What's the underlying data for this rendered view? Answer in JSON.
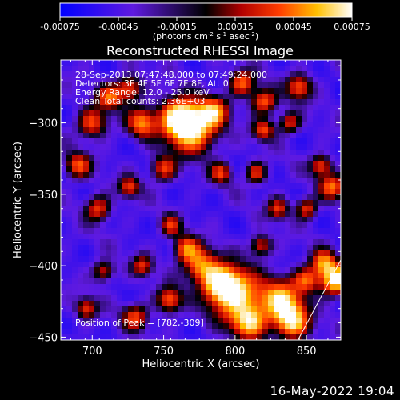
{
  "window": {
    "timestamp": "16-May-2022 19:04"
  },
  "colorbar": {
    "ticks": [
      "-0.00075",
      "-0.00045",
      "-0.00015",
      "0.00015",
      "0.00045",
      "0.00075"
    ],
    "tick_values": [
      -0.00075,
      -0.00045,
      -0.00015,
      0.00015,
      0.00045,
      0.00075
    ],
    "units_main": "(photons cm",
    "units_sup1": "-2",
    "units_mid1": " s",
    "units_sup2": "-1",
    "units_mid2": " asec",
    "units_sup3": "-2",
    "units_end": ")"
  },
  "chart_data": {
    "type": "heatmap",
    "title": "Reconstructed RHESSI Image",
    "xlabel": "Heliocentric X (arcsec)",
    "ylabel": "Heliocentric Y (arcsec)",
    "xlim": [
      678,
      874
    ],
    "ylim": [
      -452,
      -256
    ],
    "xticks": [
      700,
      750,
      800,
      850
    ],
    "yticks": [
      -300,
      -350,
      -400,
      -450
    ],
    "annotations": [
      "28-Sep-2013 07:47:48.000 to 07:49:24.000",
      "Detectors: 3F 4F 5F 6F 7F 8F, Att 0",
      "Energy Range: 12.0 - 25.0 keV",
      "Clean    Total counts: 2.36E+03"
    ],
    "peak_label": "Position of Peak = [782,-309]",
    "peak": [
      782,
      -309
    ],
    "limb_line": [
      [
        844,
        -452
      ],
      [
        874,
        -396
      ]
    ],
    "blobs": [
      [
        770,
        -304,
        11,
        1.0
      ],
      [
        760,
        -296,
        9,
        0.75
      ],
      [
        785,
        -292,
        7,
        0.55
      ],
      [
        735,
        -300,
        7,
        0.55
      ],
      [
        726,
        -276,
        6,
        0.45
      ],
      [
        712,
        -282,
        6,
        0.45
      ],
      [
        700,
        -300,
        7,
        0.45
      ],
      [
        690,
        -330,
        6,
        0.45
      ],
      [
        750,
        -332,
        6,
        0.4
      ],
      [
        805,
        -272,
        6,
        0.5
      ],
      [
        820,
        -285,
        6,
        0.5
      ],
      [
        820,
        -305,
        5,
        0.4
      ],
      [
        845,
        -275,
        6,
        0.45
      ],
      [
        838,
        -300,
        5,
        0.35
      ],
      [
        815,
        -335,
        5,
        0.35
      ],
      [
        790,
        -335,
        5,
        0.35
      ],
      [
        704,
        -360,
        6,
        0.4
      ],
      [
        726,
        -345,
        5,
        0.35
      ],
      [
        868,
        -345,
        6,
        0.5
      ],
      [
        850,
        -360,
        5,
        0.4
      ],
      [
        860,
        -330,
        5,
        0.4
      ],
      [
        830,
        -360,
        5,
        0.35
      ],
      [
        800,
        -420,
        12,
        0.9
      ],
      [
        790,
        -412,
        8,
        0.75
      ],
      [
        776,
        -400,
        8,
        0.6
      ],
      [
        766,
        -388,
        6,
        0.5
      ],
      [
        810,
        -440,
        8,
        0.7
      ],
      [
        832,
        -425,
        10,
        0.85
      ],
      [
        840,
        -440,
        8,
        0.75
      ],
      [
        870,
        -410,
        7,
        1.0
      ],
      [
        862,
        -398,
        6,
        0.55
      ],
      [
        850,
        -410,
        6,
        0.45
      ],
      [
        754,
        -424,
        6,
        0.5
      ],
      [
        730,
        -436,
        6,
        0.4
      ],
      [
        696,
        -430,
        5,
        0.35
      ],
      [
        735,
        -400,
        5,
        0.3
      ],
      [
        708,
        -404,
        5,
        0.3
      ],
      [
        755,
        -372,
        5,
        0.3
      ],
      [
        818,
        -386,
        5,
        0.35
      ]
    ]
  }
}
